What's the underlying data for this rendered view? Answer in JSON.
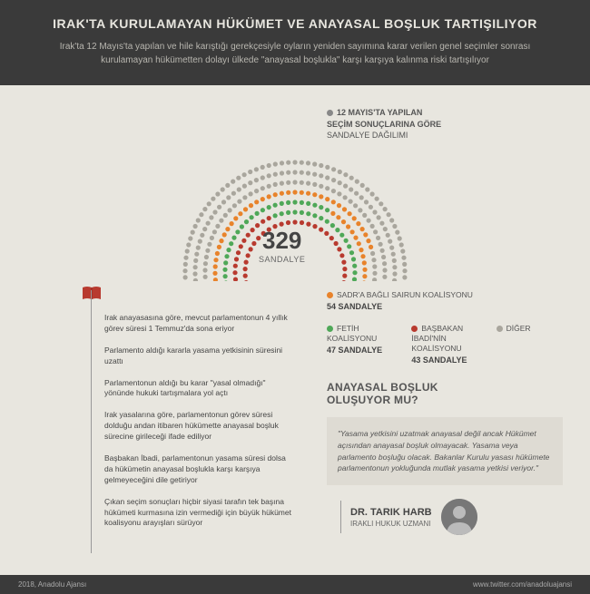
{
  "header": {
    "title": "IRAK'TA KURULAMAYAN HÜKÜMET VE ANAYASAL BOŞLUK TARTIŞILIYOR",
    "subtitle": "Irak'ta 12 Mayıs'ta yapılan ve hile karıştığı gerekçesiyle oyların yeniden sayımına karar verilen genel seçimler sonrası kurulamayan hükümetten dolayı ülkede \"anayasal boşlukla\" karşı karşıya kalınma riski tartışılıyor"
  },
  "subhead": {
    "line1": "12 MAYIS'TA YAPILAN",
    "line2": "SEÇİM SONUÇLARINA GÖRE",
    "line3": "SANDALYE DAĞILIMI"
  },
  "parliament": {
    "total": 329,
    "total_label": "SANDALYE",
    "seats": [
      {
        "name": "SADR'A BAĞLI SAIRUN KOALİSYONU",
        "count": 54,
        "count_label": "54 SANDALYE",
        "color": "#e8832b"
      },
      {
        "name": "FETİH KOALİSYONU",
        "count": 47,
        "count_label": "47 SANDALYE",
        "color": "#4fa858"
      },
      {
        "name": "BAŞBAKAN İBADİ'NİN KOALİSYONU",
        "count": 43,
        "count_label": "43 SANDALYE",
        "color": "#b83a2f"
      },
      {
        "name": "DİĞER",
        "count": 185,
        "count_label": "",
        "color": "#a9a69d"
      }
    ]
  },
  "bullets": [
    "Irak anayasasına göre, mevcut parlamentonun 4 yıllık görev süresi 1 Temmuz'da sona eriyor",
    "Parlamento aldığı kararla yasama yetkisinin süresini uzattı",
    "Parlamentonun aldığı bu karar \"yasal olmadığı\" yönünde hukuki tartışmalara yol açtı",
    "Irak yasalarına göre, parlamentonun görev süresi dolduğu andan itibaren hükümette anayasal boşluk sürecine girileceği ifade ediliyor",
    "Başbakan İbadi, parlamentonun yasama süresi dolsa da hükümetin anayasal boşlukla karşı karşıya gelmeyeceğini dile getiriyor",
    "Çıkan seçim sonuçları hiçbir siyasi tarafın tek başına hükümeti kurmasına izin vermediği için büyük hükümet koalisyonu arayışları sürüyor"
  ],
  "question": {
    "line1": "ANAYASAL BOŞLUK",
    "line2": "OLUŞUYOR MU?"
  },
  "quote": "\"Yasama yetkisini uzatmak anayasal değil ancak Hükümet açısından anayasal boşluk olmayacak. Yasama veya parlamento boşluğu olacak. Bakanlar Kurulu yasası hükümete parlamentonun yokluğunda mutlak yasama yetkisi veriyor.\"",
  "expert": {
    "name": "DR. TARIK HARB",
    "role": "IRAKLI HUKUK UZMANI"
  },
  "footer": {
    "left": "2018, Anadolu Ajansı",
    "right": "www.twitter.com/anadoluajansi"
  },
  "colors": {
    "bg": "#e8e6df",
    "darkbar": "#3a3a3a"
  }
}
